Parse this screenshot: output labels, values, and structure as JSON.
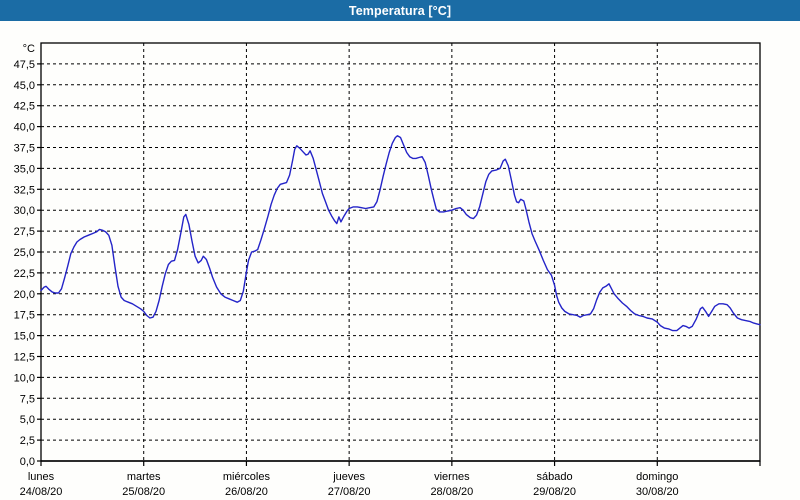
{
  "window": {
    "title": "Temperatura [°C]"
  },
  "colors": {
    "titlebar_bg": "#1b6ca5",
    "titlebar_text": "#ffffff",
    "window_border": "#1b6ca5",
    "line": "#2424c8",
    "grid": "#000000",
    "axis": "#000000",
    "text": "#000000",
    "plot_bg": "#fefefc"
  },
  "chart_data": {
    "type": "line",
    "title": "Temperatura [°C]",
    "grid": "dashed",
    "legend": "none",
    "y_axis": {
      "label": "°C",
      "min": 0,
      "max": 50,
      "tick_step": 2.5,
      "tick_labels": [
        "0,0",
        "2,5",
        "5,0",
        "7,5",
        "10,0",
        "12,5",
        "15,0",
        "17,5",
        "20,0",
        "22,5",
        "25,0",
        "27,5",
        "30,0",
        "32,5",
        "35,0",
        "37,5",
        "40,0",
        "42,5",
        "45,0",
        "47,5"
      ]
    },
    "x_axis": {
      "span_days": 7,
      "tick_days": [
        {
          "name": "lunes",
          "date": "24/08/20"
        },
        {
          "name": "martes",
          "date": "25/08/20"
        },
        {
          "name": "miércoles",
          "date": "26/08/20"
        },
        {
          "name": "jueves",
          "date": "27/08/20"
        },
        {
          "name": "viernes",
          "date": "28/08/20"
        },
        {
          "name": "sábado",
          "date": "29/08/20"
        },
        {
          "name": "domingo",
          "date": "30/08/20"
        }
      ]
    },
    "series": [
      {
        "name": "Temperatura [°C]",
        "color": "#2424c8",
        "points": [
          [
            0.0,
            20.4
          ],
          [
            0.03,
            20.8
          ],
          [
            0.05,
            20.9
          ],
          [
            0.08,
            20.5
          ],
          [
            0.11,
            20.2
          ],
          [
            0.14,
            20.1
          ],
          [
            0.17,
            20.1
          ],
          [
            0.2,
            20.6
          ],
          [
            0.23,
            21.9
          ],
          [
            0.26,
            23.3
          ],
          [
            0.29,
            24.8
          ],
          [
            0.32,
            25.6
          ],
          [
            0.35,
            26.2
          ],
          [
            0.38,
            26.5
          ],
          [
            0.42,
            26.8
          ],
          [
            0.46,
            27.0
          ],
          [
            0.5,
            27.2
          ],
          [
            0.54,
            27.4
          ],
          [
            0.57,
            27.7
          ],
          [
            0.6,
            27.6
          ],
          [
            0.63,
            27.4
          ],
          [
            0.66,
            27.0
          ],
          [
            0.69,
            25.8
          ],
          [
            0.72,
            23.2
          ],
          [
            0.75,
            20.9
          ],
          [
            0.78,
            19.6
          ],
          [
            0.81,
            19.2
          ],
          [
            0.85,
            19.0
          ],
          [
            0.89,
            18.8
          ],
          [
            0.93,
            18.5
          ],
          [
            0.97,
            18.2
          ],
          [
            1.0,
            17.9
          ],
          [
            1.03,
            17.4
          ],
          [
            1.06,
            17.1
          ],
          [
            1.09,
            17.2
          ],
          [
            1.12,
            17.9
          ],
          [
            1.15,
            19.2
          ],
          [
            1.18,
            20.9
          ],
          [
            1.21,
            22.4
          ],
          [
            1.24,
            23.5
          ],
          [
            1.27,
            23.9
          ],
          [
            1.3,
            24.0
          ],
          [
            1.33,
            25.3
          ],
          [
            1.36,
            27.2
          ],
          [
            1.39,
            29.2
          ],
          [
            1.41,
            29.5
          ],
          [
            1.44,
            28.3
          ],
          [
            1.47,
            26.3
          ],
          [
            1.5,
            24.5
          ],
          [
            1.53,
            23.7
          ],
          [
            1.56,
            24.0
          ],
          [
            1.58,
            24.5
          ],
          [
            1.61,
            24.1
          ],
          [
            1.64,
            23.1
          ],
          [
            1.67,
            22.0
          ],
          [
            1.71,
            20.8
          ],
          [
            1.75,
            20.0
          ],
          [
            1.79,
            19.6
          ],
          [
            1.83,
            19.4
          ],
          [
            1.87,
            19.2
          ],
          [
            1.91,
            19.0
          ],
          [
            1.94,
            19.2
          ],
          [
            1.97,
            20.3
          ],
          [
            2.0,
            22.6
          ],
          [
            2.02,
            24.0
          ],
          [
            2.05,
            25.0
          ],
          [
            2.08,
            25.1
          ],
          [
            2.11,
            25.3
          ],
          [
            2.14,
            26.4
          ],
          [
            2.17,
            27.6
          ],
          [
            2.21,
            29.3
          ],
          [
            2.24,
            30.7
          ],
          [
            2.27,
            31.8
          ],
          [
            2.3,
            32.6
          ],
          [
            2.33,
            33.1
          ],
          [
            2.36,
            33.2
          ],
          [
            2.39,
            33.3
          ],
          [
            2.42,
            34.2
          ],
          [
            2.45,
            36.0
          ],
          [
            2.47,
            37.3
          ],
          [
            2.49,
            37.7
          ],
          [
            2.52,
            37.4
          ],
          [
            2.55,
            37.0
          ],
          [
            2.58,
            36.6
          ],
          [
            2.6,
            36.7
          ],
          [
            2.62,
            37.1
          ],
          [
            2.65,
            36.2
          ],
          [
            2.68,
            34.8
          ],
          [
            2.71,
            33.4
          ],
          [
            2.74,
            32.0
          ],
          [
            2.77,
            31.0
          ],
          [
            2.8,
            30.0
          ],
          [
            2.83,
            29.3
          ],
          [
            2.86,
            28.7
          ],
          [
            2.88,
            28.4
          ],
          [
            2.9,
            29.2
          ],
          [
            2.92,
            28.6
          ],
          [
            2.95,
            29.3
          ],
          [
            2.98,
            29.9
          ],
          [
            3.0,
            30.2
          ],
          [
            3.04,
            30.4
          ],
          [
            3.08,
            30.4
          ],
          [
            3.12,
            30.3
          ],
          [
            3.16,
            30.2
          ],
          [
            3.2,
            30.3
          ],
          [
            3.24,
            30.4
          ],
          [
            3.27,
            31.0
          ],
          [
            3.3,
            32.4
          ],
          [
            3.33,
            34.0
          ],
          [
            3.36,
            35.5
          ],
          [
            3.39,
            36.9
          ],
          [
            3.42,
            38.0
          ],
          [
            3.45,
            38.7
          ],
          [
            3.47,
            38.9
          ],
          [
            3.5,
            38.7
          ],
          [
            3.53,
            37.8
          ],
          [
            3.56,
            36.9
          ],
          [
            3.59,
            36.4
          ],
          [
            3.62,
            36.2
          ],
          [
            3.65,
            36.2
          ],
          [
            3.68,
            36.3
          ],
          [
            3.71,
            36.4
          ],
          [
            3.74,
            35.7
          ],
          [
            3.77,
            34.2
          ],
          [
            3.8,
            32.5
          ],
          [
            3.83,
            31.0
          ],
          [
            3.85,
            30.1
          ],
          [
            3.88,
            29.8
          ],
          [
            3.92,
            29.8
          ],
          [
            3.96,
            29.9
          ],
          [
            4.0,
            30.0
          ],
          [
            4.04,
            30.2
          ],
          [
            4.08,
            30.3
          ],
          [
            4.11,
            30.0
          ],
          [
            4.14,
            29.5
          ],
          [
            4.18,
            29.1
          ],
          [
            4.21,
            29.0
          ],
          [
            4.24,
            29.4
          ],
          [
            4.27,
            30.4
          ],
          [
            4.3,
            31.9
          ],
          [
            4.33,
            33.4
          ],
          [
            4.36,
            34.3
          ],
          [
            4.39,
            34.7
          ],
          [
            4.43,
            34.8
          ],
          [
            4.47,
            35.0
          ],
          [
            4.5,
            35.9
          ],
          [
            4.52,
            36.1
          ],
          [
            4.55,
            35.3
          ],
          [
            4.58,
            33.6
          ],
          [
            4.61,
            31.8
          ],
          [
            4.63,
            31.0
          ],
          [
            4.65,
            30.9
          ],
          [
            4.67,
            31.3
          ],
          [
            4.7,
            31.1
          ],
          [
            4.72,
            30.2
          ],
          [
            4.75,
            28.6
          ],
          [
            4.78,
            27.2
          ],
          [
            4.81,
            26.3
          ],
          [
            4.85,
            25.2
          ],
          [
            4.89,
            24.0
          ],
          [
            4.93,
            22.9
          ],
          [
            4.97,
            22.2
          ],
          [
            5.0,
            21.0
          ],
          [
            5.02,
            19.8
          ],
          [
            5.04,
            19.0
          ],
          [
            5.07,
            18.3
          ],
          [
            5.1,
            17.9
          ],
          [
            5.14,
            17.6
          ],
          [
            5.18,
            17.5
          ],
          [
            5.22,
            17.4
          ],
          [
            5.25,
            17.2
          ],
          [
            5.28,
            17.4
          ],
          [
            5.32,
            17.5
          ],
          [
            5.35,
            17.6
          ],
          [
            5.38,
            18.2
          ],
          [
            5.41,
            19.3
          ],
          [
            5.44,
            20.2
          ],
          [
            5.47,
            20.7
          ],
          [
            5.5,
            20.9
          ],
          [
            5.53,
            21.2
          ],
          [
            5.55,
            20.7
          ],
          [
            5.58,
            20.0
          ],
          [
            5.62,
            19.4
          ],
          [
            5.66,
            18.9
          ],
          [
            5.7,
            18.5
          ],
          [
            5.74,
            18.0
          ],
          [
            5.78,
            17.6
          ],
          [
            5.82,
            17.4
          ],
          [
            5.86,
            17.3
          ],
          [
            5.9,
            17.1
          ],
          [
            5.95,
            17.0
          ],
          [
            6.0,
            16.6
          ],
          [
            6.03,
            16.2
          ],
          [
            6.07,
            15.9
          ],
          [
            6.11,
            15.8
          ],
          [
            6.15,
            15.6
          ],
          [
            6.19,
            15.6
          ],
          [
            6.22,
            15.9
          ],
          [
            6.25,
            16.2
          ],
          [
            6.28,
            16.1
          ],
          [
            6.31,
            15.9
          ],
          [
            6.34,
            16.1
          ],
          [
            6.38,
            17.0
          ],
          [
            6.42,
            18.2
          ],
          [
            6.44,
            18.4
          ],
          [
            6.47,
            17.9
          ],
          [
            6.5,
            17.3
          ],
          [
            6.53,
            17.9
          ],
          [
            6.56,
            18.5
          ],
          [
            6.6,
            18.8
          ],
          [
            6.64,
            18.8
          ],
          [
            6.68,
            18.7
          ],
          [
            6.71,
            18.3
          ],
          [
            6.74,
            17.7
          ],
          [
            6.78,
            17.1
          ],
          [
            6.82,
            16.9
          ],
          [
            6.86,
            16.8
          ],
          [
            6.9,
            16.7
          ],
          [
            6.94,
            16.5
          ],
          [
            6.97,
            16.4
          ],
          [
            7.0,
            16.3
          ]
        ]
      }
    ]
  }
}
